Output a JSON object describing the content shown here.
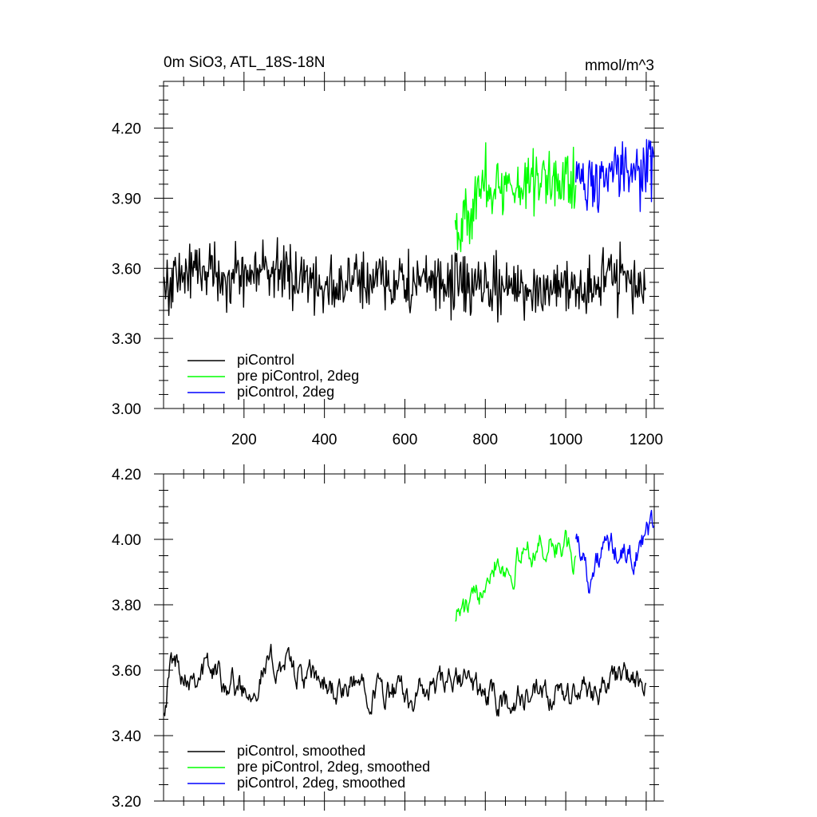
{
  "chart_data": [
    {
      "type": "line",
      "title": "0m SiO3, ATL_18S-18N",
      "units": "mmol/m^3",
      "xlim": [
        0,
        1220
      ],
      "ylim": [
        3.0,
        4.4
      ],
      "xticks": [
        200,
        400,
        600,
        800,
        1000,
        1200
      ],
      "xtick_labels": [
        "200",
        "400",
        "600",
        "800",
        "1000",
        "1200"
      ],
      "yticks": [
        3.0,
        3.3,
        3.6,
        3.9,
        4.2
      ],
      "ytick_labels": [
        "3.00",
        "3.30",
        "3.60",
        "3.90",
        "4.20"
      ],
      "legend_position": "bottom-left",
      "series": [
        {
          "name": "piControl",
          "color": "#000000",
          "x_start": 1,
          "x_end": 1200,
          "anchors": [
            [
              1,
              3.52
            ],
            [
              50,
              3.58
            ],
            [
              100,
              3.61
            ],
            [
              150,
              3.57
            ],
            [
              200,
              3.56
            ],
            [
              250,
              3.6
            ],
            [
              300,
              3.58
            ],
            [
              350,
              3.55
            ],
            [
              400,
              3.53
            ],
            [
              450,
              3.52
            ],
            [
              500,
              3.56
            ],
            [
              550,
              3.55
            ],
            [
              600,
              3.53
            ],
            [
              650,
              3.54
            ],
            [
              700,
              3.52
            ],
            [
              750,
              3.54
            ],
            [
              800,
              3.5
            ],
            [
              850,
              3.52
            ],
            [
              900,
              3.51
            ],
            [
              950,
              3.52
            ],
            [
              1000,
              3.53
            ],
            [
              1050,
              3.52
            ],
            [
              1100,
              3.55
            ],
            [
              1150,
              3.56
            ],
            [
              1200,
              3.52
            ]
          ],
          "noise": 0.12
        },
        {
          "name": "pre piControl, 2deg",
          "color": "#00ff00",
          "x_start": 725,
          "x_end": 1025,
          "anchors": [
            [
              725,
              3.8
            ],
            [
              760,
              3.82
            ],
            [
              800,
              3.98
            ],
            [
              850,
              3.92
            ],
            [
              900,
              3.98
            ],
            [
              950,
              3.99
            ],
            [
              1000,
              3.98
            ],
            [
              1025,
              3.96
            ]
          ],
          "noise": 0.13
        },
        {
          "name": "piControl, 2deg",
          "color": "#0000ff",
          "x_start": 1025,
          "x_end": 1220,
          "anchors": [
            [
              1025,
              4.0
            ],
            [
              1070,
              3.96
            ],
            [
              1120,
              4.02
            ],
            [
              1170,
              3.98
            ],
            [
              1220,
              4.05
            ]
          ],
          "noise": 0.12
        }
      ]
    },
    {
      "type": "line",
      "title": "",
      "xlim": [
        0,
        1220
      ],
      "ylim": [
        3.2,
        4.2
      ],
      "xticks": [
        200,
        400,
        600,
        800,
        1000,
        1200
      ],
      "yticks": [
        3.2,
        3.4,
        3.6,
        3.8,
        4.0,
        4.2
      ],
      "ytick_labels": [
        "3.20",
        "3.40",
        "3.60",
        "3.80",
        "4.00",
        "4.20"
      ],
      "legend_position": "bottom-left",
      "series": [
        {
          "name": "piControl, smoothed",
          "color": "#000000",
          "x_start": 1,
          "x_end": 1200,
          "anchors": [
            [
              1,
              3.5
            ],
            [
              20,
              3.63
            ],
            [
              60,
              3.6
            ],
            [
              100,
              3.61
            ],
            [
              150,
              3.58
            ],
            [
              200,
              3.54
            ],
            [
              250,
              3.6
            ],
            [
              300,
              3.63
            ],
            [
              350,
              3.57
            ],
            [
              400,
              3.56
            ],
            [
              450,
              3.52
            ],
            [
              500,
              3.57
            ],
            [
              550,
              3.53
            ],
            [
              600,
              3.52
            ],
            [
              650,
              3.53
            ],
            [
              700,
              3.55
            ],
            [
              750,
              3.57
            ],
            [
              800,
              3.52
            ],
            [
              850,
              3.5
            ],
            [
              900,
              3.52
            ],
            [
              950,
              3.5
            ],
            [
              1000,
              3.52
            ],
            [
              1050,
              3.54
            ],
            [
              1100,
              3.56
            ],
            [
              1150,
              3.58
            ],
            [
              1200,
              3.53
            ]
          ],
          "noise": 0.05
        },
        {
          "name": "pre piControl, 2deg, smoothed",
          "color": "#00ff00",
          "x_start": 725,
          "x_end": 1025,
          "anchors": [
            [
              725,
              3.78
            ],
            [
              750,
              3.78
            ],
            [
              780,
              3.8
            ],
            [
              800,
              3.92
            ],
            [
              830,
              3.96
            ],
            [
              860,
              3.9
            ],
            [
              900,
              3.97
            ],
            [
              950,
              3.98
            ],
            [
              1000,
              3.98
            ],
            [
              1025,
              3.9
            ]
          ],
          "noise": 0.05
        },
        {
          "name": "piControl, 2deg, smoothed",
          "color": "#0000ff",
          "x_start": 1025,
          "x_end": 1220,
          "anchors": [
            [
              1025,
              4.03
            ],
            [
              1060,
              3.88
            ],
            [
              1100,
              3.97
            ],
            [
              1150,
              3.94
            ],
            [
              1190,
              3.98
            ],
            [
              1220,
              4.05
            ]
          ],
          "noise": 0.05
        }
      ]
    }
  ]
}
